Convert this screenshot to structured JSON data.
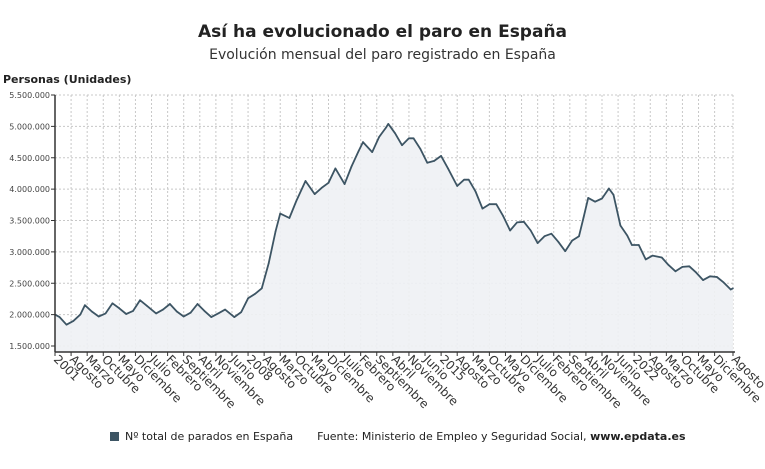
{
  "chart_data": {
    "type": "area",
    "title": "Así ha evolucionado el paro en España",
    "subtitle": "Evolución mensual del paro registrado en España",
    "ylabel": "Personas (Unidades)",
    "xlabel": "",
    "ylim": [
      1500000,
      5500000
    ],
    "yticks": [
      "5.500.000",
      "5.000.000",
      "4.500.000",
      "4.000.000",
      "3.500.000",
      "3.000.000",
      "2.500.000",
      "2.000.000",
      "1.500.000"
    ],
    "ytick_values": [
      5500000,
      5000000,
      4500000,
      4000000,
      3500000,
      3000000,
      2500000,
      2000000,
      1500000
    ],
    "xrange": [
      "2001-01",
      "2025-08"
    ],
    "xtick_labels": [
      {
        "date": "2001-01",
        "label": "2001"
      },
      {
        "date": "2001-08",
        "label": "Agosto"
      },
      {
        "date": "2002-03",
        "label": "Marzo"
      },
      {
        "date": "2002-10",
        "label": "Octubre"
      },
      {
        "date": "2003-05",
        "label": "Mayo"
      },
      {
        "date": "2003-12",
        "label": "Diciembre"
      },
      {
        "date": "2004-07",
        "label": "Julio"
      },
      {
        "date": "2005-02",
        "label": "Febrero"
      },
      {
        "date": "2005-09",
        "label": "Septiembre"
      },
      {
        "date": "2006-04",
        "label": "Abril"
      },
      {
        "date": "2006-11",
        "label": "Noviembre"
      },
      {
        "date": "2007-06",
        "label": "Junio"
      },
      {
        "date": "2008-01",
        "label": "2008"
      },
      {
        "date": "2008-08",
        "label": "Agosto"
      },
      {
        "date": "2009-03",
        "label": "Marzo"
      },
      {
        "date": "2009-10",
        "label": "Octubre"
      },
      {
        "date": "2010-05",
        "label": "Mayo"
      },
      {
        "date": "2010-12",
        "label": "Diciembre"
      },
      {
        "date": "2011-07",
        "label": "Julio"
      },
      {
        "date": "2012-02",
        "label": "Febrero"
      },
      {
        "date": "2012-09",
        "label": "Septiembre"
      },
      {
        "date": "2013-04",
        "label": "Abril"
      },
      {
        "date": "2013-11",
        "label": "Noviembre"
      },
      {
        "date": "2014-06",
        "label": "Junio"
      },
      {
        "date": "2015-01",
        "label": "2015"
      },
      {
        "date": "2015-08",
        "label": "Agosto"
      },
      {
        "date": "2016-03",
        "label": "Marzo"
      },
      {
        "date": "2016-10",
        "label": "Octubre"
      },
      {
        "date": "2017-05",
        "label": "Mayo"
      },
      {
        "date": "2017-12",
        "label": "Diciembre"
      },
      {
        "date": "2018-07",
        "label": "Julio"
      },
      {
        "date": "2019-02",
        "label": "Febrero"
      },
      {
        "date": "2019-09",
        "label": "Septiembre"
      },
      {
        "date": "2020-04",
        "label": "Abril"
      },
      {
        "date": "2020-11",
        "label": "Noviembre"
      },
      {
        "date": "2021-06",
        "label": "Junio"
      },
      {
        "date": "2022-01",
        "label": "2022"
      },
      {
        "date": "2022-08",
        "label": "Agosto"
      },
      {
        "date": "2023-03",
        "label": "Marzo"
      },
      {
        "date": "2023-10",
        "label": "Octubre"
      },
      {
        "date": "2024-05",
        "label": "Mayo"
      },
      {
        "date": "2024-12",
        "label": "Diciembre"
      },
      {
        "date": "2025-08",
        "label": "Agosto"
      }
    ],
    "grid": true,
    "legend_position": "bottom",
    "series": [
      {
        "name": "Nº total de parados en España",
        "color": "#3d5564",
        "fill": "#eef1f4",
        "points": [
          [
            "2001-01",
            2000000
          ],
          [
            "2001-03",
            1960000
          ],
          [
            "2001-06",
            1840000
          ],
          [
            "2001-09",
            1900000
          ],
          [
            "2001-12",
            2000000
          ],
          [
            "2002-02",
            2150000
          ],
          [
            "2002-05",
            2050000
          ],
          [
            "2002-08",
            1970000
          ],
          [
            "2002-11",
            2020000
          ],
          [
            "2003-02",
            2180000
          ],
          [
            "2003-05",
            2100000
          ],
          [
            "2003-08",
            2010000
          ],
          [
            "2003-11",
            2060000
          ],
          [
            "2004-02",
            2230000
          ],
          [
            "2004-05",
            2140000
          ],
          [
            "2004-09",
            2020000
          ],
          [
            "2004-12",
            2080000
          ],
          [
            "2005-03",
            2170000
          ],
          [
            "2005-06",
            2050000
          ],
          [
            "2005-09",
            1970000
          ],
          [
            "2005-12",
            2030000
          ],
          [
            "2006-03",
            2170000
          ],
          [
            "2006-06",
            2060000
          ],
          [
            "2006-09",
            1960000
          ],
          [
            "2006-12",
            2020000
          ],
          [
            "2007-03",
            2080000
          ],
          [
            "2007-07",
            1960000
          ],
          [
            "2007-10",
            2040000
          ],
          [
            "2008-01",
            2260000
          ],
          [
            "2008-04",
            2330000
          ],
          [
            "2008-07",
            2420000
          ],
          [
            "2008-10",
            2820000
          ],
          [
            "2009-01",
            3330000
          ],
          [
            "2009-03",
            3610000
          ],
          [
            "2009-07",
            3540000
          ],
          [
            "2009-10",
            3810000
          ],
          [
            "2010-02",
            4130000
          ],
          [
            "2010-06",
            3920000
          ],
          [
            "2010-09",
            4020000
          ],
          [
            "2010-12",
            4100000
          ],
          [
            "2011-03",
            4330000
          ],
          [
            "2011-07",
            4080000
          ],
          [
            "2011-10",
            4360000
          ],
          [
            "2012-01",
            4600000
          ],
          [
            "2012-03",
            4750000
          ],
          [
            "2012-07",
            4590000
          ],
          [
            "2012-10",
            4830000
          ],
          [
            "2013-01",
            4980000
          ],
          [
            "2013-02",
            5040000
          ],
          [
            "2013-05",
            4890000
          ],
          [
            "2013-08",
            4700000
          ],
          [
            "2013-11",
            4810000
          ],
          [
            "2014-01",
            4810000
          ],
          [
            "2014-04",
            4640000
          ],
          [
            "2014-07",
            4420000
          ],
          [
            "2014-10",
            4450000
          ],
          [
            "2015-01",
            4530000
          ],
          [
            "2015-04",
            4330000
          ],
          [
            "2015-08",
            4050000
          ],
          [
            "2015-11",
            4150000
          ],
          [
            "2016-01",
            4150000
          ],
          [
            "2016-04",
            3960000
          ],
          [
            "2016-07",
            3690000
          ],
          [
            "2016-10",
            3760000
          ],
          [
            "2017-01",
            3760000
          ],
          [
            "2017-04",
            3570000
          ],
          [
            "2017-07",
            3340000
          ],
          [
            "2017-10",
            3470000
          ],
          [
            "2018-01",
            3480000
          ],
          [
            "2018-04",
            3340000
          ],
          [
            "2018-07",
            3140000
          ],
          [
            "2018-10",
            3250000
          ],
          [
            "2019-01",
            3290000
          ],
          [
            "2019-04",
            3160000
          ],
          [
            "2019-07",
            3010000
          ],
          [
            "2019-10",
            3180000
          ],
          [
            "2020-01",
            3250000
          ],
          [
            "2020-03",
            3550000
          ],
          [
            "2020-05",
            3860000
          ],
          [
            "2020-08",
            3800000
          ],
          [
            "2020-11",
            3850000
          ],
          [
            "2021-02",
            4010000
          ],
          [
            "2021-04",
            3910000
          ],
          [
            "2021-07",
            3420000
          ],
          [
            "2021-10",
            3260000
          ],
          [
            "2021-12",
            3110000
          ],
          [
            "2022-03",
            3110000
          ],
          [
            "2022-06",
            2880000
          ],
          [
            "2022-09",
            2940000
          ],
          [
            "2023-01",
            2910000
          ],
          [
            "2023-04",
            2790000
          ],
          [
            "2023-07",
            2690000
          ],
          [
            "2023-10",
            2760000
          ],
          [
            "2024-01",
            2770000
          ],
          [
            "2024-04",
            2670000
          ],
          [
            "2024-07",
            2550000
          ],
          [
            "2024-10",
            2610000
          ],
          [
            "2025-01",
            2600000
          ],
          [
            "2025-04",
            2510000
          ],
          [
            "2025-07",
            2400000
          ],
          [
            "2025-08",
            2420000
          ]
        ]
      }
    ]
  },
  "legend": {
    "label": "Nº total de parados en España",
    "source_prefix": "Fuente: Ministerio de Empleo y Seguridad Social, ",
    "source_site": "www.epdata.es"
  }
}
